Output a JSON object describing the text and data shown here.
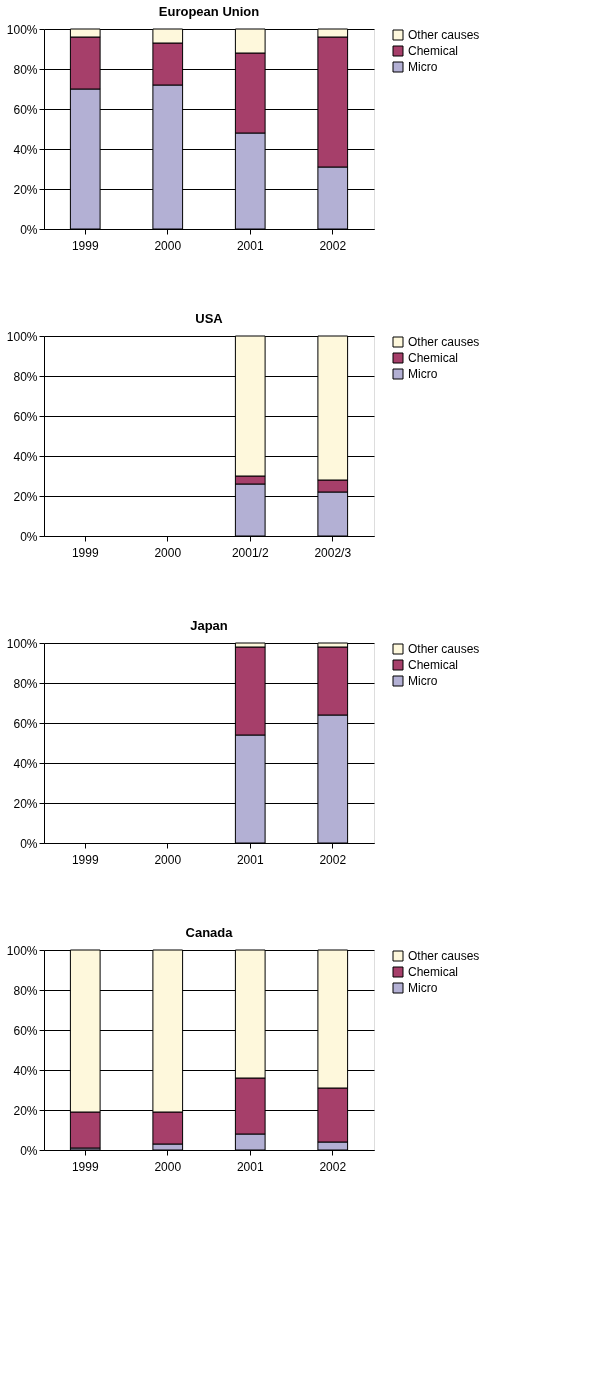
{
  "chart_data": [
    {
      "type": "bar",
      "title": "European Union",
      "stacked": true,
      "categories": [
        "1999",
        "2000",
        "2001",
        "2002"
      ],
      "ylim": [
        0,
        100
      ],
      "yticks": [
        {
          "value": 0,
          "label": "0%"
        },
        {
          "value": 20,
          "label": "20%"
        },
        {
          "value": 40,
          "label": "40%"
        },
        {
          "value": 60,
          "label": "60%"
        },
        {
          "value": 80,
          "label": "80%"
        },
        {
          "value": 100,
          "label": "100%"
        }
      ],
      "grid": "y",
      "legend": "right",
      "series": [
        {
          "name": "Micro",
          "color": "#b3b0d4",
          "values": [
            70,
            72,
            48,
            31
          ]
        },
        {
          "name": "Chemical",
          "color": "#a63f6a",
          "values": [
            26,
            21,
            40,
            65
          ]
        },
        {
          "name": "Other causes",
          "color": "#fef8dc",
          "values": [
            4,
            7,
            12,
            4
          ]
        }
      ]
    },
    {
      "type": "bar",
      "title": "USA",
      "stacked": true,
      "categories": [
        "1999",
        "2000",
        "2001/2",
        "2002/3"
      ],
      "ylim": [
        0,
        100
      ],
      "yticks": [
        {
          "value": 0,
          "label": "0%"
        },
        {
          "value": 20,
          "label": "20%"
        },
        {
          "value": 40,
          "label": "40%"
        },
        {
          "value": 60,
          "label": "60%"
        },
        {
          "value": 80,
          "label": "80%"
        },
        {
          "value": 100,
          "label": "100%"
        }
      ],
      "grid": "y",
      "legend": "right",
      "series": [
        {
          "name": "Micro",
          "color": "#b3b0d4",
          "values": [
            null,
            null,
            26,
            22
          ]
        },
        {
          "name": "Chemical",
          "color": "#a63f6a",
          "values": [
            null,
            null,
            4,
            6
          ]
        },
        {
          "name": "Other causes",
          "color": "#fef8dc",
          "values": [
            null,
            null,
            70,
            72
          ]
        }
      ]
    },
    {
      "type": "bar",
      "title": "Japan",
      "stacked": true,
      "categories": [
        "1999",
        "2000",
        "2001",
        "2002"
      ],
      "ylim": [
        0,
        100
      ],
      "yticks": [
        {
          "value": 0,
          "label": "0%"
        },
        {
          "value": 20,
          "label": "20%"
        },
        {
          "value": 40,
          "label": "40%"
        },
        {
          "value": 60,
          "label": "60%"
        },
        {
          "value": 80,
          "label": "80%"
        },
        {
          "value": 100,
          "label": "100%"
        }
      ],
      "grid": "y",
      "legend": "right",
      "series": [
        {
          "name": "Micro",
          "color": "#b3b0d4",
          "values": [
            null,
            null,
            54,
            64
          ]
        },
        {
          "name": "Chemical",
          "color": "#a63f6a",
          "values": [
            null,
            null,
            44,
            34
          ]
        },
        {
          "name": "Other causes",
          "color": "#fef8dc",
          "values": [
            null,
            null,
            2,
            2
          ]
        }
      ]
    },
    {
      "type": "bar",
      "title": "Canada",
      "stacked": true,
      "categories": [
        "1999",
        "2000",
        "2001",
        "2002"
      ],
      "ylim": [
        0,
        100
      ],
      "yticks": [
        {
          "value": 0,
          "label": "0%"
        },
        {
          "value": 20,
          "label": "20%"
        },
        {
          "value": 40,
          "label": "40%"
        },
        {
          "value": 60,
          "label": "60%"
        },
        {
          "value": 80,
          "label": "80%"
        },
        {
          "value": 100,
          "label": "100%"
        }
      ],
      "grid": "y",
      "legend": "right",
      "series": [
        {
          "name": "Micro",
          "color": "#b3b0d4",
          "values": [
            1,
            3,
            8,
            4
          ]
        },
        {
          "name": "Chemical",
          "color": "#a63f6a",
          "values": [
            18,
            16,
            28,
            27
          ]
        },
        {
          "name": "Other causes",
          "color": "#fef8dc",
          "values": [
            81,
            81,
            64,
            69
          ]
        }
      ]
    }
  ]
}
